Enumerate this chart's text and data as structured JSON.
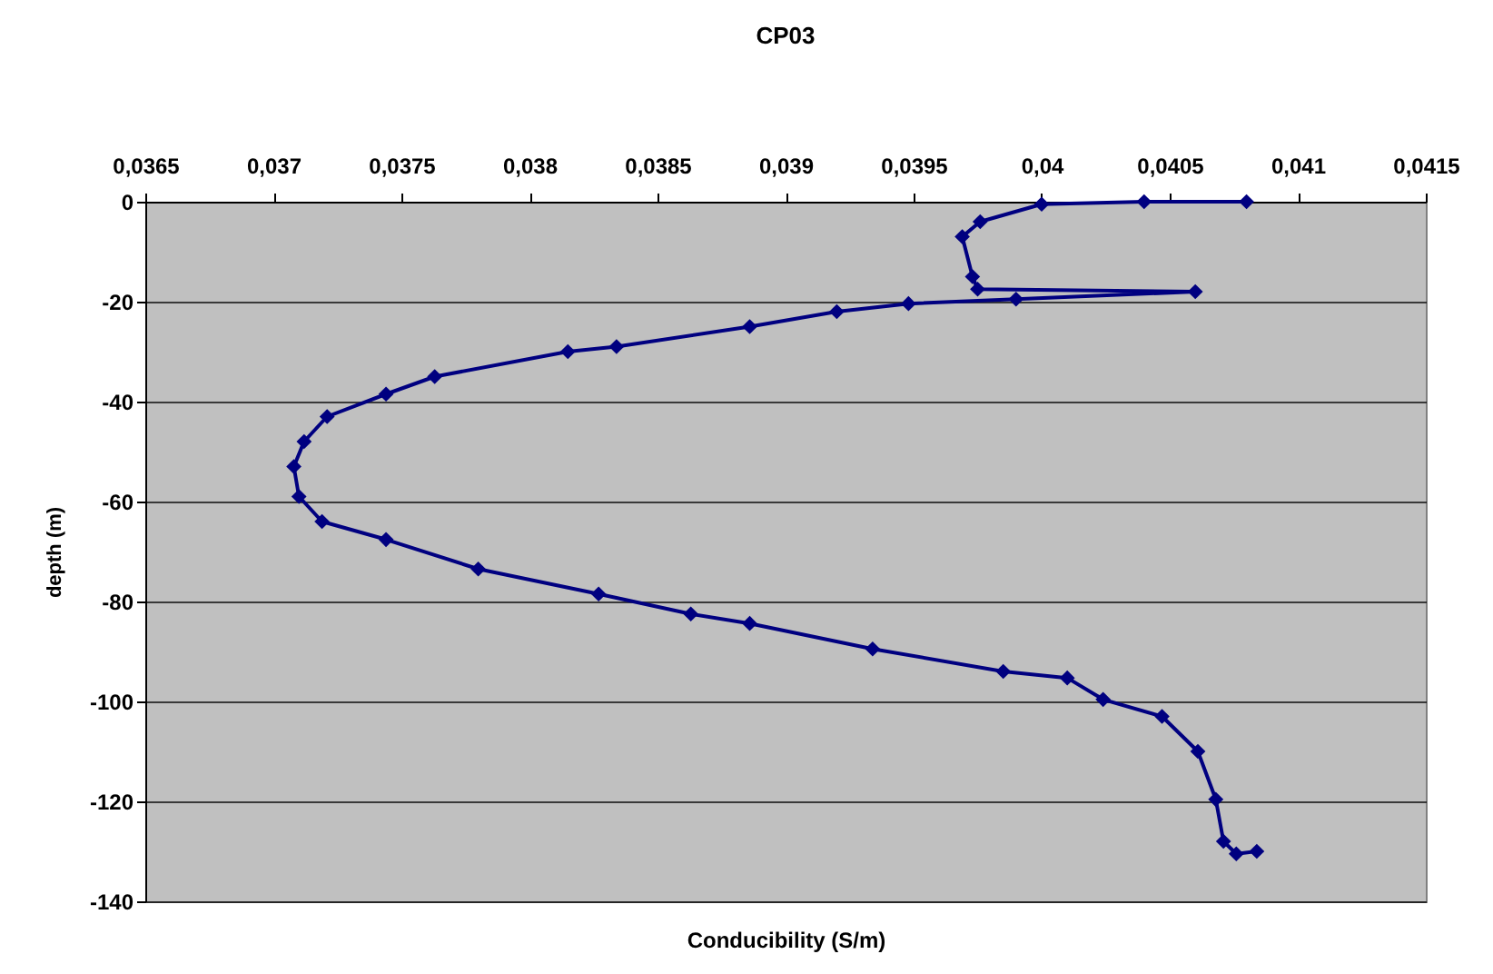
{
  "chart_data": {
    "type": "line",
    "title": "CP03",
    "xlabel": "Conducibility (S/m)",
    "ylabel": "depth (m)",
    "x": [
      0.0408,
      0.0404,
      0.04,
      0.03976,
      0.03969,
      0.03973,
      0.03975,
      0.0406,
      0.0399,
      0.03948,
      0.0392,
      0.03886,
      0.03834,
      0.03815,
      0.03763,
      0.03744,
      0.03721,
      0.03712,
      0.03708,
      0.0371,
      0.03719,
      0.03744,
      0.0378,
      0.03827,
      0.03863,
      0.03886,
      0.03934,
      0.03985,
      0.0401,
      0.04024,
      0.04047,
      0.04061,
      0.04068,
      0.04071,
      0.04076,
      0.04084
    ],
    "series": [
      {
        "color": "#000080",
        "values": [
          0,
          0,
          -0.5,
          -4,
          -7,
          -15,
          -17.5,
          -18,
          -19.5,
          -20.4,
          -22,
          -25,
          -29,
          -30,
          -35,
          -38.5,
          -43,
          -48,
          -53,
          -59,
          -64,
          -67.6,
          -73.5,
          -78.5,
          -82.5,
          -84.4,
          -89.5,
          -94,
          -95.3,
          -99.6,
          -103,
          -110,
          -119.6,
          -128,
          -130.5,
          -130
        ]
      }
    ],
    "xlim": [
      0.0365,
      0.0415
    ],
    "xticks": [
      {
        "value": 0.0365,
        "label": "0,0365"
      },
      {
        "value": 0.037,
        "label": "0,037"
      },
      {
        "value": 0.0375,
        "label": "0,0375"
      },
      {
        "value": 0.038,
        "label": "0,038"
      },
      {
        "value": 0.0385,
        "label": "0,0385"
      },
      {
        "value": 0.039,
        "label": "0,039"
      },
      {
        "value": 0.0395,
        "label": "0,0395"
      },
      {
        "value": 0.04,
        "label": "0,04"
      },
      {
        "value": 0.0405,
        "label": "0,0405"
      },
      {
        "value": 0.041,
        "label": "0,041"
      },
      {
        "value": 0.0415,
        "label": "0,0415"
      }
    ],
    "ylim": [
      -140,
      0
    ],
    "yticks": [
      -140,
      -120,
      -100,
      -80,
      -60,
      -40,
      -20,
      0
    ],
    "grid": "y",
    "marker": "diamond",
    "line_style": "solid"
  }
}
